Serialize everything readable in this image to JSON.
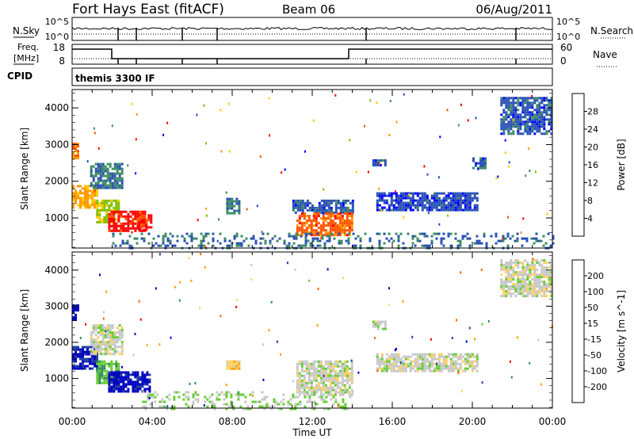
{
  "header": {
    "station": "Fort Hays East (fitACF)",
    "beam": "Beam 06",
    "date": "06/Aug/2011"
  },
  "top_panels": {
    "nsky_label": "N.Sky",
    "nsky_ticks": [
      "10^5",
      "10^0"
    ],
    "nsearch_label": "N.Search",
    "nsearch_ticks": [
      "10^5",
      "10^0"
    ],
    "freq_label_1": "Freq.",
    "freq_label_2": "[MHz]",
    "freq_ticks": [
      "18",
      "8"
    ],
    "nave_label": "Nave",
    "nave_ticks": [
      "60",
      "0"
    ],
    "cpid_label": "CPID",
    "cpid_text": "themis 3300 IF"
  },
  "colors": {
    "power_scale": [
      "#0000ff",
      "#2850b4",
      "#3c8c64",
      "#7fbf00",
      "#ffcc00",
      "#ff9900",
      "#ff5500",
      "#ff0000"
    ],
    "velocity_scale": [
      "#ff0000",
      "#ff6600",
      "#ffa000",
      "#ffd060",
      "#c8c8c8",
      "#66cc33",
      "#2e8b57",
      "#1e40a0",
      "#0000c0"
    ]
  },
  "chart_data": [
    {
      "type": "heatmap",
      "title": "Power",
      "xlabel": "Time UT",
      "ylabel": "Slant Range [km]",
      "xlim": [
        "00:00",
        "24:00"
      ],
      "ylim": [
        180,
        4500
      ],
      "x_tick_labels": [
        "00:00",
        "04:00",
        "08:00",
        "12:00",
        "16:00",
        "20:00",
        "00:00"
      ],
      "y_tick_labels": [
        "1000",
        "2000",
        "3000",
        "4000"
      ],
      "colorbar": {
        "label": "Power [dB]",
        "ticks": [
          "4",
          "8",
          "12",
          "16",
          "20",
          "24",
          "28"
        ],
        "range": [
          0,
          30
        ]
      },
      "regions": [
        {
          "t0": 0.0,
          "t1": 0.35,
          "r0": 2600,
          "r1": 3050,
          "value": 22
        },
        {
          "t0": 0.0,
          "t1": 1.2,
          "r0": 1300,
          "r1": 1900,
          "value": 20
        },
        {
          "t0": 0.9,
          "t1": 2.5,
          "r0": 1800,
          "r1": 2500,
          "value": 8
        },
        {
          "t0": 1.2,
          "t1": 2.3,
          "r0": 900,
          "r1": 1500,
          "value": 14
        },
        {
          "t0": 1.8,
          "t1": 3.6,
          "r0": 650,
          "r1": 1200,
          "value": 28
        },
        {
          "t0": 3.3,
          "t1": 3.9,
          "r0": 650,
          "r1": 1100,
          "value": 26
        },
        {
          "t0": 7.7,
          "t1": 8.3,
          "r0": 1150,
          "r1": 1550,
          "value": 8
        },
        {
          "t0": 11.0,
          "t1": 14.0,
          "r0": 1150,
          "r1": 1500,
          "value": 6
        },
        {
          "t0": 11.2,
          "t1": 14.0,
          "r0": 550,
          "r1": 1150,
          "value": 24
        },
        {
          "t0": 15.0,
          "t1": 15.6,
          "r0": 2450,
          "r1": 2600,
          "value": 6
        },
        {
          "t0": 15.2,
          "t1": 20.2,
          "r0": 1200,
          "r1": 1700,
          "value": 5
        },
        {
          "t0": 20.0,
          "t1": 20.6,
          "r0": 2350,
          "r1": 2650,
          "value": 6
        },
        {
          "t0": 21.4,
          "t1": 23.9,
          "r0": 3300,
          "r1": 4300,
          "value": 6
        },
        {
          "t0": 2.0,
          "t1": 24.0,
          "r0": 180,
          "r1": 600,
          "value": 7
        }
      ]
    },
    {
      "type": "heatmap",
      "title": "Velocity",
      "xlabel": "Time UT",
      "ylabel": "Slant Range [km]",
      "xlim": [
        "00:00",
        "24:00"
      ],
      "ylim": [
        180,
        4500
      ],
      "x_tick_labels": [
        "00:00",
        "04:00",
        "08:00",
        "12:00",
        "16:00",
        "20:00",
        "00:00"
      ],
      "y_tick_labels": [
        "1000",
        "2000",
        "3000",
        "4000"
      ],
      "colorbar": {
        "label": "Velocity [m s^-1]",
        "ticks": [
          "200",
          "100",
          "50",
          "15",
          "-15",
          "-50",
          "-100",
          "-200"
        ],
        "range": [
          -250,
          250
        ]
      },
      "regions": [
        {
          "t0": 0.0,
          "t1": 0.35,
          "r0": 2600,
          "r1": 3050,
          "value": 220
        },
        {
          "t0": 0.0,
          "t1": 1.2,
          "r0": 1300,
          "r1": 1900,
          "value": 200
        },
        {
          "t0": 0.9,
          "t1": 2.5,
          "r0": 1700,
          "r1": 2500,
          "value": 5
        },
        {
          "t0": 1.2,
          "t1": 2.3,
          "r0": 900,
          "r1": 1500,
          "value": 80
        },
        {
          "t0": 1.8,
          "t1": 3.9,
          "r0": 650,
          "r1": 1200,
          "value": 220
        },
        {
          "t0": 7.7,
          "t1": 8.3,
          "r0": 1250,
          "r1": 1500,
          "value": -60
        },
        {
          "t0": 11.2,
          "t1": 14.0,
          "r0": 550,
          "r1": 1500,
          "value": 0
        },
        {
          "t0": 15.2,
          "t1": 20.2,
          "r0": 1200,
          "r1": 1700,
          "value": 0
        },
        {
          "t0": 15.0,
          "t1": 15.6,
          "r0": 2350,
          "r1": 2600,
          "value": 0
        },
        {
          "t0": 21.4,
          "t1": 23.9,
          "r0": 3300,
          "r1": 4300,
          "value": 0
        },
        {
          "t0": 3.5,
          "t1": 14.0,
          "r0": 180,
          "r1": 650,
          "value": 30
        }
      ]
    }
  ]
}
